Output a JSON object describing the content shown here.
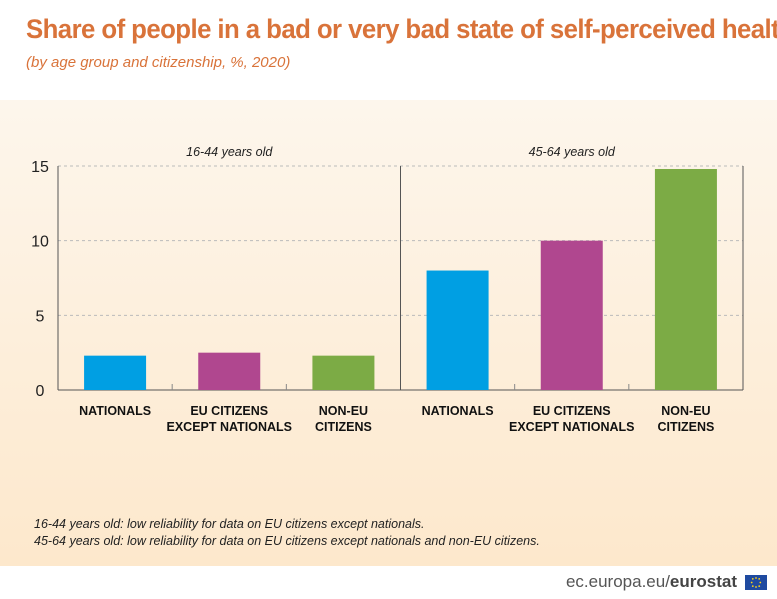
{
  "header": {
    "title": "Share of people in a bad or very bad state of self-perceived health",
    "subtitle": "(by age group and citizenship, %, 2020)"
  },
  "chart_data": {
    "type": "bar",
    "groups": [
      {
        "label": "16-44 years old",
        "categories": [
          "NATIONALS",
          "EU CITIZENS\nEXCEPT NATIONALS",
          "NON-EU\nCITIZENS"
        ],
        "values": [
          2.3,
          2.5,
          2.3
        ],
        "colors": [
          "#009fe3",
          "#b0478f",
          "#7cab45"
        ]
      },
      {
        "label": "45-64 years old",
        "categories": [
          "NATIONALS",
          "EU CITIZENS\nEXCEPT NATIONALS",
          "NON-EU\nCITIZENS"
        ],
        "values": [
          8.0,
          10.0,
          14.8
        ],
        "colors": [
          "#009fe3",
          "#b0478f",
          "#7cab45"
        ]
      }
    ],
    "yticks": [
      0,
      5,
      10,
      15
    ],
    "ylim": [
      0,
      15
    ],
    "grid": true,
    "legend": "none"
  },
  "notes": [
    "16-44 years old: low reliability for data on EU citizens except nationals.",
    "45-64 years old: low reliability for data on EU citizens except nationals and non-EU citizens."
  ],
  "footer": {
    "site_prefix": "ec.europa.eu/",
    "site_brand": "eurostat"
  }
}
